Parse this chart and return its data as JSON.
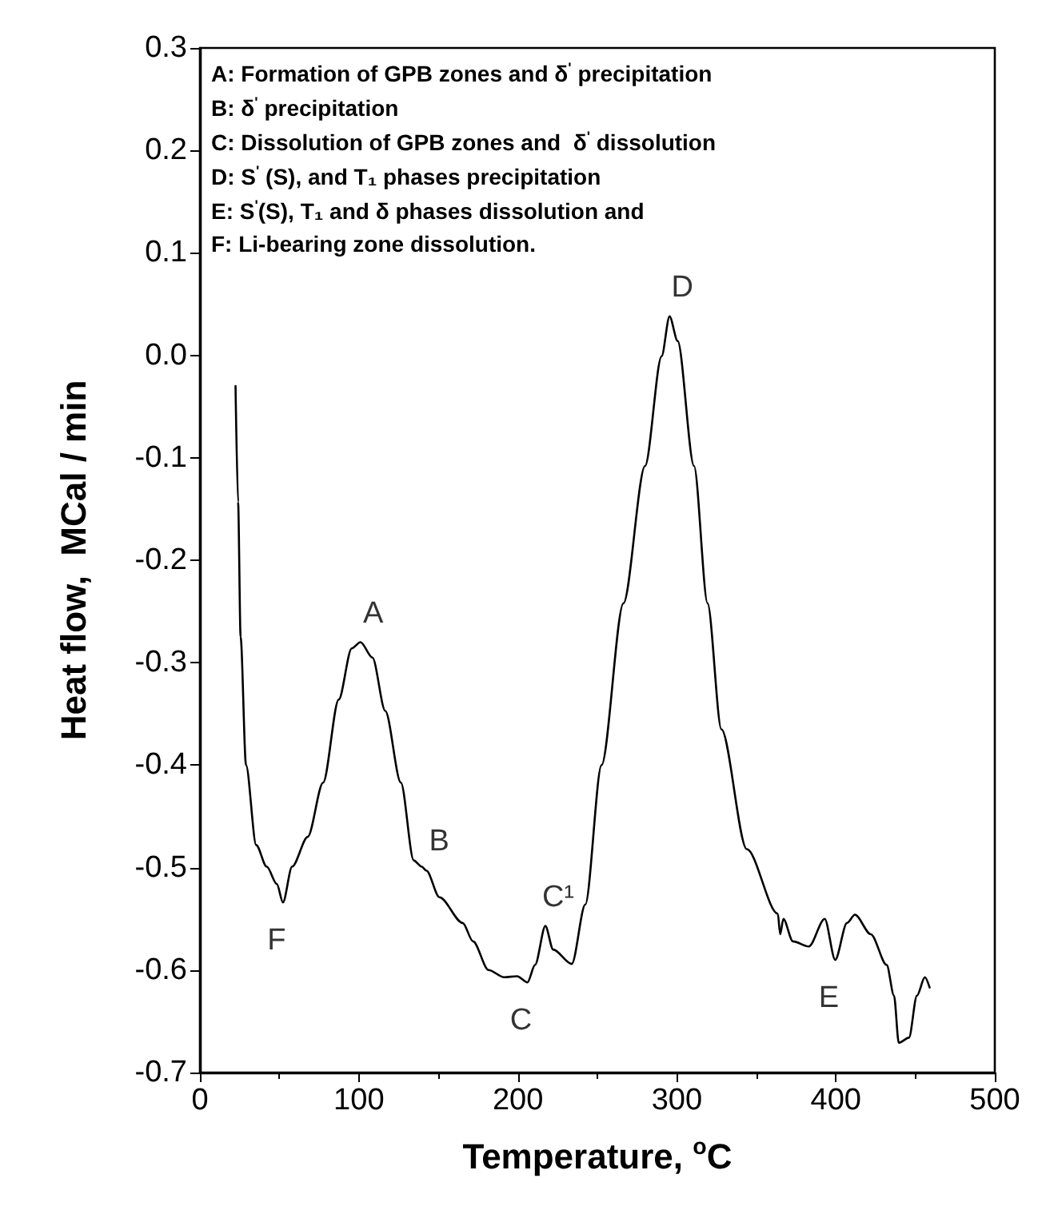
{
  "chart_data": {
    "type": "line",
    "xlabel": "Temperature, $^{o}$C",
    "ylabel": "Heat flow,  MCal / min",
    "xlim": [
      0,
      500
    ],
    "ylim": [
      -0.7,
      0.3
    ],
    "xticks": [
      0,
      100,
      200,
      300,
      400,
      500
    ],
    "yticks": [
      0.3,
      0.2,
      0.1,
      {
        "value": 0,
        "label": "0.0"
      },
      -0.1,
      -0.2,
      -0.3,
      -0.4,
      -0.5,
      -0.6,
      -0.7
    ],
    "grid": false,
    "marker": "none",
    "line_style": "solid",
    "series": [
      {
        "color": "#000000",
        "x": [
          22.4,
          24,
          25.6,
          29,
          35.4,
          42,
          48.4,
          52.2,
          58,
          67.8,
          77.5,
          87.3,
          95.5,
          101,
          108.5,
          116.6,
          126.4,
          134.5,
          139.4,
          142.5,
          150.7,
          165.3,
          171.8,
          181.6,
          191.3,
          199.5,
          206,
          210.8,
          217.3,
          222.2,
          233.9,
          242.4,
          252.6,
          266.4,
          280,
          290.4,
          295.4,
          300.5,
          310.8,
          319.3,
          328,
          344,
          363.5,
          365,
          367,
          373,
          383,
          393,
          399.6,
          407,
          412,
          422,
          432,
          436.6,
          439.6,
          446,
          451,
          456,
          459
        ],
        "values": [
          -0.03,
          -0.143,
          -0.275,
          -0.4,
          -0.478,
          -0.499,
          -0.516,
          -0.534,
          -0.499,
          -0.47,
          -0.417,
          -0.336,
          -0.286,
          -0.28,
          -0.295,
          -0.347,
          -0.417,
          -0.493,
          -0.499,
          -0.503,
          -0.529,
          -0.554,
          -0.572,
          -0.6,
          -0.607,
          -0.606,
          -0.612,
          -0.595,
          -0.557,
          -0.58,
          -0.594,
          -0.536,
          -0.4,
          -0.242,
          -0.108,
          -0.001,
          0.038,
          0.014,
          -0.108,
          -0.242,
          -0.365,
          -0.482,
          -0.545,
          -0.565,
          -0.55,
          -0.572,
          -0.577,
          -0.55,
          -0.59,
          -0.554,
          -0.546,
          -0.565,
          -0.595,
          -0.625,
          -0.671,
          -0.666,
          -0.625,
          -0.607,
          -0.617
        ]
      }
    ],
    "annotations": [
      "A: Formation of GPB zones and δ$^{'}$ precipitation",
      "B: δ$^{'}$ precipitation",
      "C: Dissolution of GPB zones and  δ$^{'}$ dissolution",
      "D: S$^{'}$ (S), and T₁ phases precipitation",
      "E: S$^{'}$(S), T₁ and δ phases dissolution and",
      "F: Li-bearing zone dissolution.",
      {
        "text": "A",
        "x": 101,
        "y": -0.28
      },
      {
        "text": "B",
        "x": 142.5,
        "y": -0.503
      },
      {
        "text": "C",
        "x": 206,
        "y": -0.612
      },
      {
        "text": "C¹",
        "x": 217.3,
        "y": -0.557
      },
      {
        "text": "D",
        "x": 295.4,
        "y": 0.038
      },
      {
        "text": "E",
        "x": 399.6,
        "y": -0.59
      },
      {
        "text": "F",
        "x": 52.2,
        "y": -0.534
      }
    ]
  }
}
